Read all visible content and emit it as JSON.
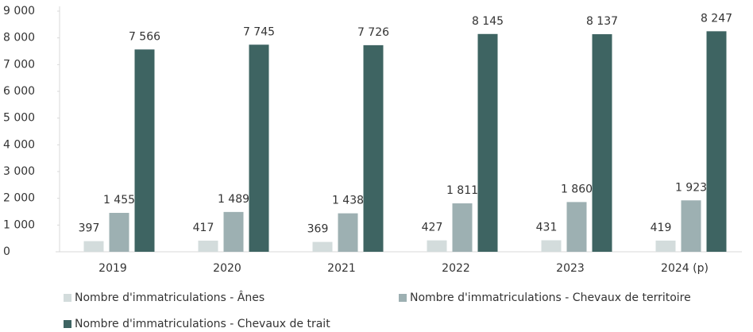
{
  "chart_data": {
    "type": "bar",
    "categories": [
      "2019",
      "2020",
      "2021",
      "2022",
      "2023",
      "2024 (p)"
    ],
    "series": [
      {
        "name": "Nombre d'immatriculations - Ânes",
        "color": "#d3dcdc",
        "values": [
          397,
          417,
          369,
          427,
          431,
          419
        ]
      },
      {
        "name": "Nombre d'immatriculations - Chevaux de territoire",
        "color": "#9db0b2",
        "values": [
          1455,
          1489,
          1438,
          1811,
          1860,
          1923
        ],
        "value_labels": [
          "1 455",
          "1 489",
          "1 438",
          "1 811",
          "1 860",
          "1 923"
        ]
      },
      {
        "name": "Nombre d'immatriculations - Chevaux de trait",
        "color": "#3e6462",
        "values": [
          7566,
          7745,
          7726,
          8145,
          8137,
          8247
        ],
        "value_labels": [
          "7 566",
          "7 745",
          "7 726",
          "8 145",
          "8 137",
          "8 247"
        ]
      }
    ],
    "ylim": [
      0,
      9000
    ],
    "yticks": [
      0,
      {
        "value": 1000,
        "label": "1 000"
      },
      {
        "value": 2000,
        "label": "2 000"
      },
      {
        "value": 3000,
        "label": "3 000"
      },
      {
        "value": 4000,
        "label": "4 000"
      },
      {
        "value": 5000,
        "label": "5 000"
      },
      {
        "value": 6000,
        "label": "6 000"
      },
      {
        "value": 7000,
        "label": "7 000"
      },
      {
        "value": 8000,
        "label": "8 000"
      },
      {
        "value": 9000,
        "label": "9 000"
      }
    ],
    "legend": "bottom"
  }
}
